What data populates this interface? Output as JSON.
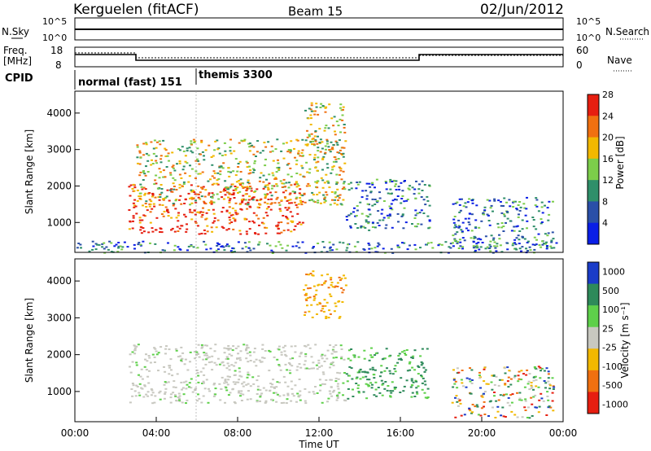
{
  "header": {
    "site": "Kerguelen (fitACF)",
    "beam": "Beam 15",
    "date": "02/Jun/2012"
  },
  "strip": {
    "nsky_label": "N.Sky",
    "nsky_ticks": [
      "10^5",
      "10^0"
    ],
    "nsearch_label": "N.Search",
    "nsearch_ticks": [
      "10^5",
      "10^0"
    ],
    "freq_label": "Freq.",
    "freq_unit": "[MHz]",
    "freq_ticks": [
      "18",
      "8"
    ],
    "nave_label": "Nave",
    "nave_ticks": [
      "60",
      "0"
    ],
    "cpid_label": "CPID",
    "cpid_segments": [
      {
        "label": "normal (fast) 151",
        "start_hour": 0,
        "end_hour": 6
      },
      {
        "label": "themis 3300",
        "start_hour": 6,
        "end_hour": 24
      }
    ]
  },
  "time_axis": {
    "label": "Time UT",
    "ticks": [
      "00:00",
      "04:00",
      "08:00",
      "12:00",
      "16:00",
      "20:00",
      "00:00"
    ]
  },
  "chart_data": [
    {
      "type": "heatmap",
      "name": "power",
      "ylabel": "Slant Range [km]",
      "yticks": [
        "1000",
        "2000",
        "3000",
        "4000"
      ],
      "xlim_hours": [
        0,
        24
      ],
      "ylim_km": [
        180,
        4600
      ],
      "colorbar_label": "Power [dB]",
      "colorbar_ticks": [
        "4",
        "8",
        "12",
        "16",
        "20",
        "24",
        "28"
      ],
      "colors": [
        "#0a1ee6",
        "#2a4fa8",
        "#2f8f6a",
        "#7ccd4a",
        "#f2b800",
        "#f07010",
        "#e61e10"
      ],
      "scatter_regions": [
        {
          "t_hours": [
            2.6,
            11.3
          ],
          "range_km": [
            700,
            2100
          ],
          "level": "high"
        },
        {
          "t_hours": [
            3.0,
            13.3
          ],
          "range_km": [
            1500,
            3300
          ],
          "level": "medium"
        },
        {
          "t_hours": [
            11.2,
            13.3
          ],
          "range_km": [
            3000,
            4300
          ],
          "level": "medium"
        },
        {
          "t_hours": [
            13.3,
            17.4
          ],
          "range_km": [
            800,
            2200
          ],
          "level": "low"
        },
        {
          "t_hours": [
            18.5,
            23.5
          ],
          "range_km": [
            300,
            1700
          ],
          "level": "low"
        },
        {
          "t_hours": [
            0,
            24
          ],
          "range_km": [
            180,
            500
          ],
          "level": "low"
        }
      ]
    },
    {
      "type": "heatmap",
      "name": "velocity",
      "ylabel": "Slant Range [km]",
      "yticks": [
        "1000",
        "2000",
        "3000",
        "4000"
      ],
      "xlim_hours": [
        0,
        24
      ],
      "ylim_km": [
        180,
        4600
      ],
      "colorbar_label": "Velocity [m s⁻¹]",
      "colorbar_ticks": [
        "1000",
        "500",
        "100",
        "25",
        "-25",
        "-100",
        "-500",
        "-1000"
      ],
      "colors": [
        "#1a3cc8",
        "#2e8a5a",
        "#5ed04a",
        "#c8c8c0",
        "#f2b800",
        "#f07010",
        "#e61e10"
      ],
      "scatter_regions": [
        {
          "t_hours": [
            2.6,
            13.3
          ],
          "range_km": [
            700,
            2300
          ],
          "level": "ground scatter"
        },
        {
          "t_hours": [
            11.2,
            13.3
          ],
          "range_km": [
            3000,
            4300
          ],
          "level": "negative"
        },
        {
          "t_hours": [
            13.3,
            17.4
          ],
          "range_km": [
            800,
            2200
          ],
          "level": "positive"
        },
        {
          "t_hours": [
            18.5,
            23.5
          ],
          "range_km": [
            300,
            1700
          ],
          "level": "mixed"
        }
      ]
    }
  ]
}
